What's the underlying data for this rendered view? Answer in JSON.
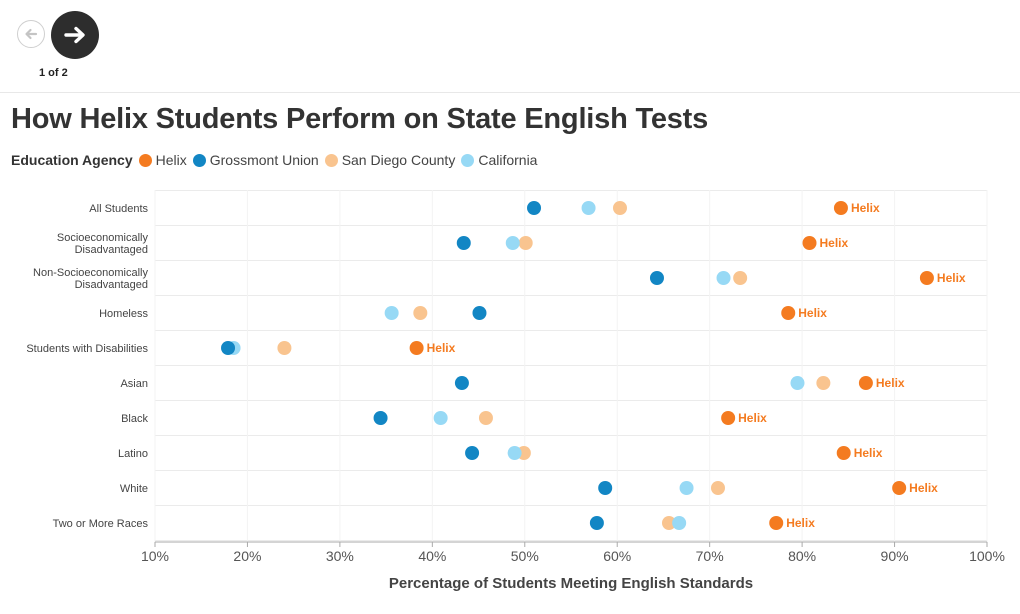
{
  "nav": {
    "prev_icon": "arrow-left-icon",
    "next_icon": "arrow-right-icon",
    "page_counter": "1 of 2"
  },
  "chart_data": {
    "type": "scatter",
    "title": "How Helix Students Perform on State English Tests",
    "legend_title": "Education Agency",
    "xlabel": "Percentage of Students Meeting English Standards",
    "ylabel": "",
    "xlim": [
      10,
      100
    ],
    "x_ticks": [
      "10%",
      "20%",
      "30%",
      "40%",
      "50%",
      "60%",
      "70%",
      "80%",
      "90%",
      "100%"
    ],
    "categories": [
      [
        "All Students"
      ],
      [
        "Socioeconomically",
        "Disadvantaged"
      ],
      [
        "Non-Socioeconomically",
        "Disadvantaged"
      ],
      [
        "Homeless"
      ],
      [
        "Students with Disabilities"
      ],
      [
        "Asian"
      ],
      [
        "Black"
      ],
      [
        "Latino"
      ],
      [
        "White"
      ],
      [
        "Two or More Races"
      ]
    ],
    "series": [
      {
        "name": "San Diego County",
        "color": "#f9c48f",
        "values": [
          60.3,
          50.1,
          73.3,
          38.7,
          24.0,
          82.3,
          45.8,
          49.9,
          70.9,
          65.6
        ]
      },
      {
        "name": "California",
        "color": "#97d9f5",
        "values": [
          56.9,
          48.7,
          71.5,
          35.6,
          18.5,
          79.5,
          40.9,
          48.9,
          67.5,
          66.7
        ]
      },
      {
        "name": "Grossmont Union",
        "color": "#1286c4",
        "values": [
          51.0,
          43.4,
          64.3,
          45.1,
          17.9,
          43.2,
          34.4,
          44.3,
          58.7,
          57.8
        ]
      },
      {
        "name": "Helix",
        "color": "#f47b20",
        "values": [
          84.2,
          80.8,
          93.5,
          78.5,
          38.3,
          86.9,
          72.0,
          84.5,
          90.5,
          77.2
        ]
      }
    ],
    "legend_order": [
      "Helix",
      "Grossmont Union",
      "San Diego County",
      "California"
    ],
    "point_label_series": "Helix",
    "point_label": "Helix",
    "grid": true
  }
}
